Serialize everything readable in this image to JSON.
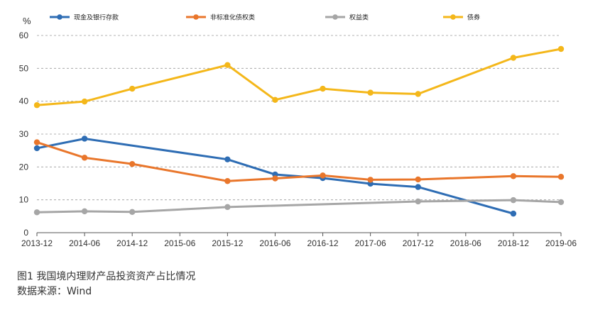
{
  "chart_data": {
    "type": "line",
    "unit": "%",
    "categories": [
      "2013-12",
      "2014-06",
      "2014-12",
      "2015-06",
      "2015-12",
      "2016-06",
      "2016-12",
      "2017-06",
      "2017-12",
      "2018-06",
      "2018-12",
      "2019-06"
    ],
    "ylim": [
      0,
      60
    ],
    "yticks": [
      0,
      10,
      20,
      30,
      40,
      50,
      60
    ],
    "grid": "horizontal dashed",
    "legend_position": "top",
    "series": [
      {
        "name": "现金及银行存款",
        "color": "#2e6db4",
        "points": [
          [
            "2013-12",
            25.7
          ],
          [
            "2014-06",
            28.6
          ],
          [
            "2015-12",
            22.3
          ],
          [
            "2016-06",
            17.7
          ],
          [
            "2016-12",
            16.6
          ],
          [
            "2017-06",
            14.9
          ],
          [
            "2017-12",
            13.9
          ],
          [
            "2018-12",
            5.8
          ]
        ]
      },
      {
        "name": "非标准化债权类",
        "color": "#e9762b",
        "points": [
          [
            "2013-12",
            27.5
          ],
          [
            "2014-06",
            22.8
          ],
          [
            "2014-12",
            20.9
          ],
          [
            "2015-12",
            15.7
          ],
          [
            "2016-06",
            16.5
          ],
          [
            "2016-12",
            17.4
          ],
          [
            "2017-06",
            16.1
          ],
          [
            "2017-12",
            16.2
          ],
          [
            "2018-12",
            17.2
          ],
          [
            "2019-06",
            17.0
          ]
        ]
      },
      {
        "name": "权益类",
        "color": "#a6a6a6",
        "points": [
          [
            "2013-12",
            6.2
          ],
          [
            "2014-06",
            6.5
          ],
          [
            "2014-12",
            6.3
          ],
          [
            "2015-12",
            7.8
          ],
          [
            "2017-12",
            9.5
          ],
          [
            "2018-12",
            9.9
          ],
          [
            "2019-06",
            9.3
          ]
        ]
      },
      {
        "name": "债券",
        "color": "#f4b71a",
        "points": [
          [
            "2013-12",
            38.8
          ],
          [
            "2014-06",
            39.9
          ],
          [
            "2014-12",
            43.8
          ],
          [
            "2015-12",
            51.0
          ],
          [
            "2016-06",
            40.4
          ],
          [
            "2016-12",
            43.8
          ],
          [
            "2017-06",
            42.6
          ],
          [
            "2017-12",
            42.2
          ],
          [
            "2018-12",
            53.2
          ],
          [
            "2019-06",
            55.9
          ]
        ]
      }
    ]
  },
  "caption": {
    "title": "图1  我国境内理财产品投资资产占比情况",
    "source": "数据来源：Wind"
  }
}
